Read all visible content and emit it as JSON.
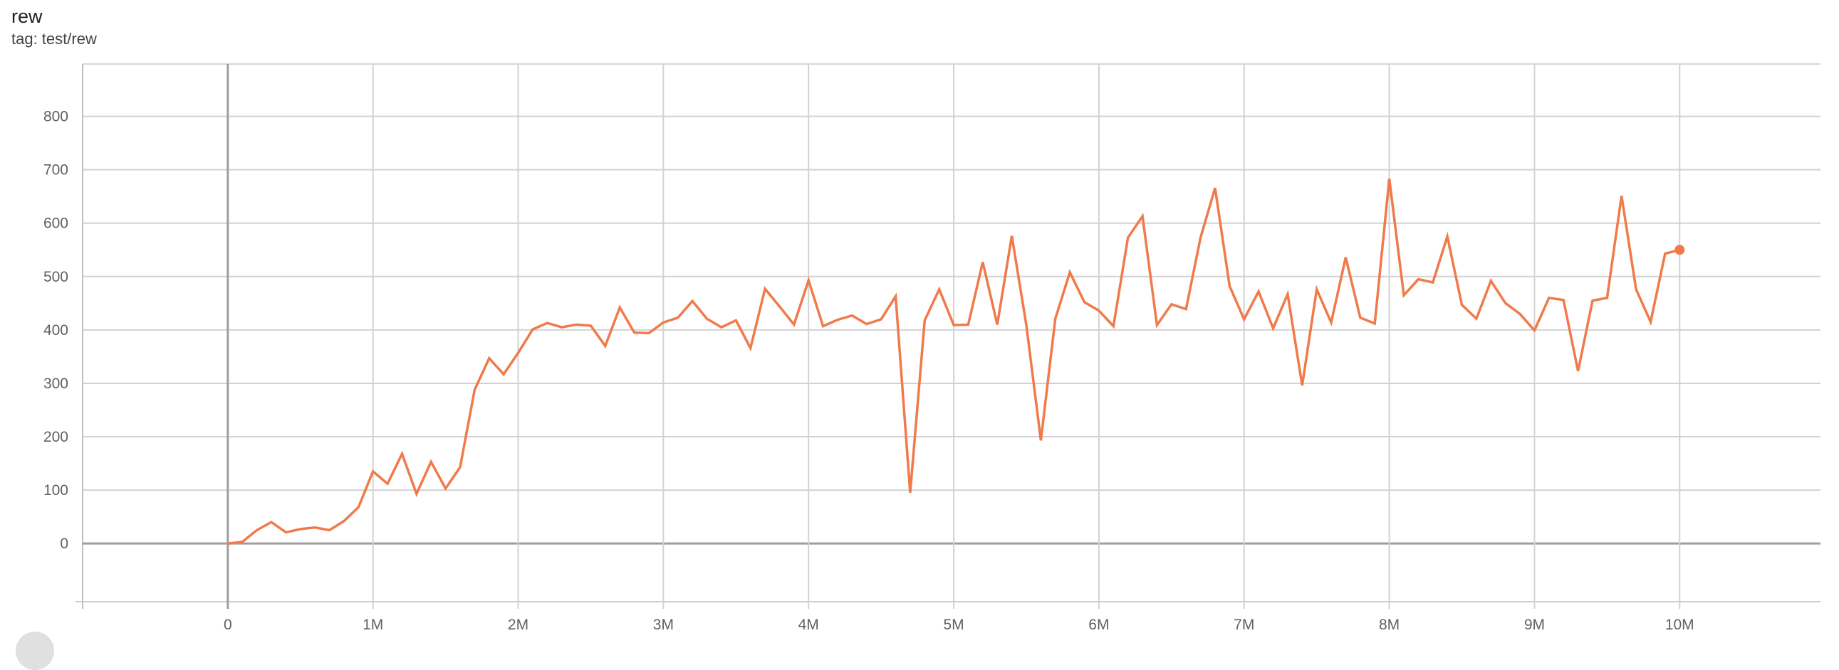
{
  "card": {
    "title": "rew",
    "tag": "tag: test/rew"
  },
  "chart_data": {
    "type": "line",
    "title": "rew",
    "subtitle": "tag: test/rew",
    "xlabel": "",
    "ylabel": "",
    "xlim": [
      -1000000,
      10970000
    ],
    "ylim": [
      -109,
      898
    ],
    "grid": true,
    "x_ticks": [
      0,
      1000000,
      2000000,
      3000000,
      4000000,
      5000000,
      6000000,
      7000000,
      8000000,
      9000000,
      10000000
    ],
    "x_tick_labels": [
      "0",
      "1M",
      "2M",
      "3M",
      "4M",
      "5M",
      "6M",
      "7M",
      "8M",
      "9M",
      "10M"
    ],
    "y_ticks": [
      0,
      100,
      200,
      300,
      400,
      500,
      600,
      700,
      800
    ],
    "y_tick_labels": [
      "0",
      "100",
      "200",
      "300",
      "400",
      "500",
      "600",
      "700",
      "800"
    ],
    "color": "#f07a4a",
    "x_step": 100000,
    "values": [
      0,
      3,
      25,
      40,
      21,
      27,
      30,
      25,
      42,
      68,
      135,
      112,
      168,
      93,
      153,
      103,
      143,
      288,
      347,
      317,
      357,
      401,
      413,
      405,
      410,
      408,
      370,
      442,
      395,
      394,
      414,
      423,
      454,
      421,
      405,
      418,
      366,
      477,
      444,
      410,
      493,
      407,
      419,
      427,
      411,
      420,
      463,
      95,
      418,
      476,
      409,
      410,
      527,
      410,
      576,
      409,
      193,
      421,
      508,
      452,
      436,
      407,
      573,
      613,
      409,
      448,
      439,
      573,
      666,
      482,
      420,
      472,
      403,
      467,
      296,
      476,
      414,
      536,
      423,
      412,
      683,
      465,
      495,
      489,
      575,
      447,
      421,
      492,
      450,
      430,
      399,
      460,
      456,
      323,
      455,
      460,
      651,
      476,
      415,
      543,
      550
    ]
  }
}
